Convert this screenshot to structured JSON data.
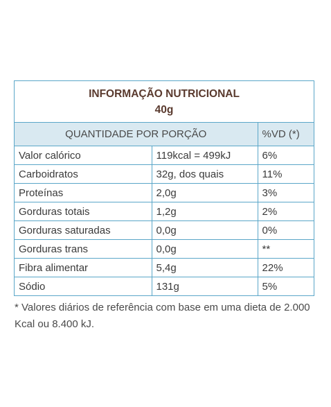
{
  "header": {
    "title": "INFORMAÇÃO NUTRICIONAL",
    "portion": "40g"
  },
  "table": {
    "qty_header": "QUANTIDADE POR PORÇÃO",
    "vd_header": "%VD (*)",
    "rows": [
      {
        "name": "Valor calórico",
        "amount": "119kcal = 499kJ",
        "vd": "6%"
      },
      {
        "name": "Carboidratos",
        "amount": "32g, dos quais",
        "vd": "11%"
      },
      {
        "name": "Proteínas",
        "amount": "2,0g",
        "vd": "3%"
      },
      {
        "name": "Gorduras totais",
        "amount": "1,2g",
        "vd": "2%"
      },
      {
        "name": "Gorduras saturadas",
        "amount": "0,0g",
        "vd": "0%"
      },
      {
        "name": "Gorduras trans",
        "amount": "0,0g",
        "vd": "**"
      },
      {
        "name": "Fibra alimentar",
        "amount": "5,4g",
        "vd": "22%"
      },
      {
        "name": "Sódio",
        "amount": "131g",
        "vd": "5%"
      }
    ]
  },
  "footnote": "* Valores diários de referência com base em uma dieta de 2.000 Kcal ou 8.400 kJ.",
  "colors": {
    "border": "#5aa6c8",
    "header_bg": "#d9e9f1",
    "title_text": "#5a3a2e"
  }
}
